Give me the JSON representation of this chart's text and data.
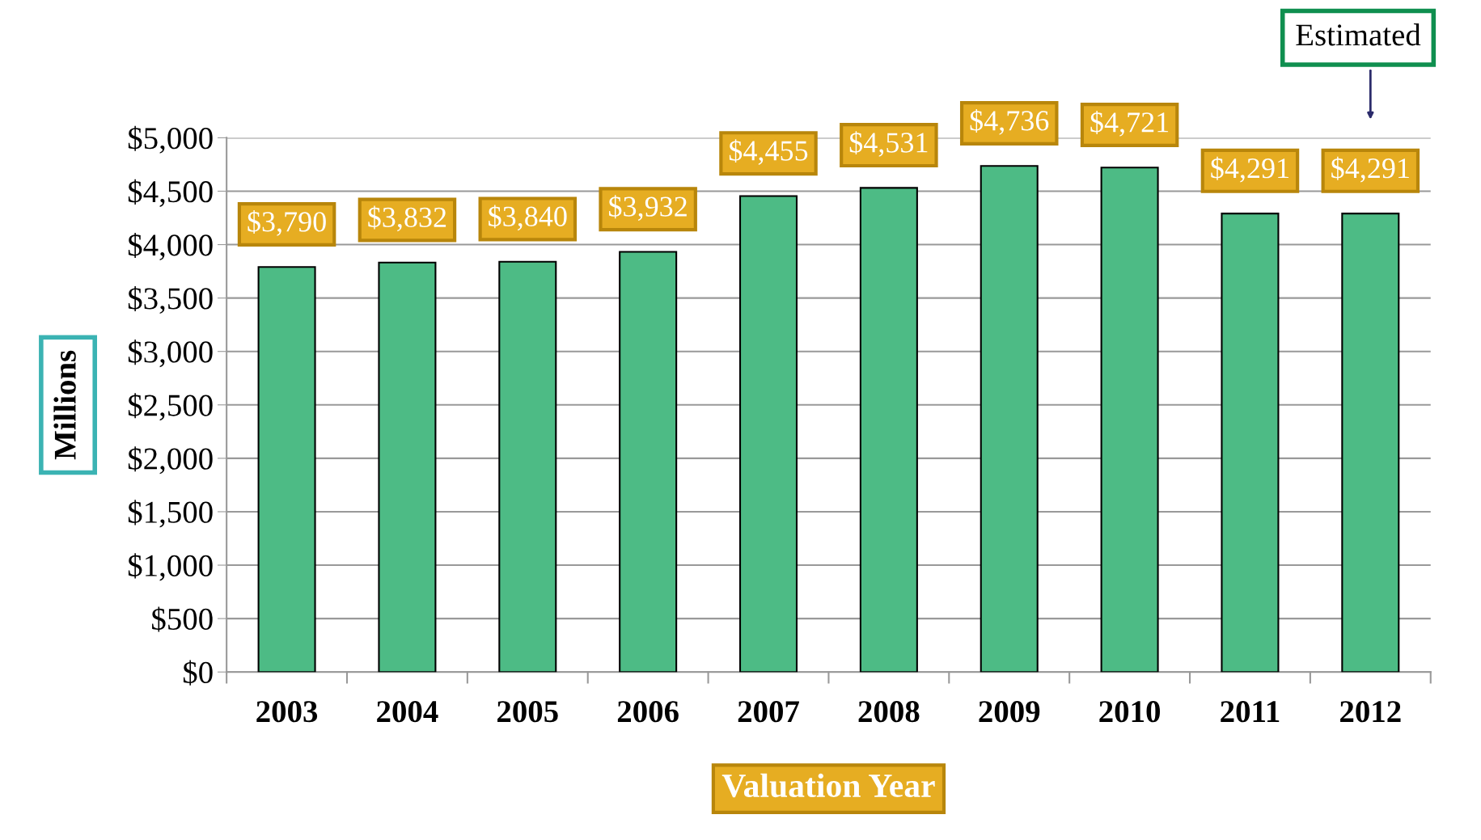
{
  "chart_data": {
    "type": "bar",
    "categories": [
      "2003",
      "2004",
      "2005",
      "2006",
      "2007",
      "2008",
      "2009",
      "2010",
      "2011",
      "2012"
    ],
    "values": [
      3790,
      3832,
      3840,
      3932,
      4455,
      4531,
      4736,
      4721,
      4291,
      4291
    ],
    "value_labels": [
      "$3,790",
      "$3,832",
      "$3,840",
      "$3,932",
      "$4,455",
      "$4,531",
      "$4,736",
      "$4,721",
      "$4,291",
      "$4,291"
    ],
    "color": "#4dbb85",
    "xlabel": "Valuation Year",
    "ylabel": "Millions",
    "annotations": [
      "Estimated"
    ],
    "ylim": [
      0,
      5000
    ],
    "yticks": [
      {
        "value": 0,
        "label": "$0"
      },
      {
        "value": 500,
        "label": "$500"
      },
      {
        "value": 1000,
        "label": "$1,000"
      },
      {
        "value": 1500,
        "label": "$1,500"
      },
      {
        "value": 2000,
        "label": "$2,000"
      },
      {
        "value": 2500,
        "label": "$2,500"
      },
      {
        "value": 3000,
        "label": "$3,000"
      },
      {
        "value": 3500,
        "label": "$3,500"
      },
      {
        "value": 4000,
        "label": "$4,000"
      },
      {
        "value": 4500,
        "label": "$4,500"
      },
      {
        "value": 5000,
        "label": "$5,000"
      }
    ],
    "grid": "y"
  }
}
